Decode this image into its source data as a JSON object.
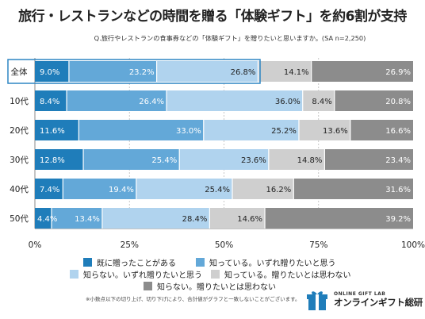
{
  "title": "旅行・レストランなどの時間を贈る「体験ギフト」を約6割が支持",
  "subtitle": "Q.旅行やレストランの食事券などの「体験ギフト」を贈りたいと思いますか。(SA n=2,250)",
  "footnote": "※小数点以下の切り上げ、切り下げにより、合計値がグラフと一致しないことがございます。",
  "logo": {
    "sub": "ONLINE GIFT LAB",
    "main": "オンラインギフト総研"
  },
  "chart_data": {
    "type": "bar",
    "orientation": "horizontal",
    "stacked": true,
    "categories": [
      "全体",
      "10代",
      "20代",
      "30代",
      "40代",
      "50代"
    ],
    "highlight_category": "全体",
    "series": [
      {
        "name": "既に贈ったことがある",
        "color": "#1f7dba",
        "values": [
          9.0,
          8.4,
          11.6,
          12.8,
          7.4,
          4.4
        ]
      },
      {
        "name": "知っている。いずれ贈りたいと思う",
        "color": "#63a8d8",
        "values": [
          23.2,
          26.4,
          33.0,
          25.4,
          19.4,
          13.4
        ]
      },
      {
        "name": "知らない。いずれ贈りたいと思う",
        "color": "#b0d3ee",
        "values": [
          26.8,
          36.0,
          25.2,
          23.6,
          25.4,
          28.4
        ]
      },
      {
        "name": "知っている。贈りたいとは思わない",
        "color": "#cfcfcf",
        "values": [
          14.1,
          8.4,
          13.6,
          14.8,
          16.2,
          14.6
        ]
      },
      {
        "name": "知らない。贈りたいとは思わない",
        "color": "#8c8c8c",
        "values": [
          26.9,
          20.8,
          16.6,
          23.4,
          31.6,
          39.2
        ]
      }
    ],
    "xlim": [
      0,
      100
    ],
    "xticks": [
      "0%",
      "25%",
      "50%",
      "75%",
      "100%"
    ],
    "grid": true,
    "legend_position": "bottom"
  }
}
